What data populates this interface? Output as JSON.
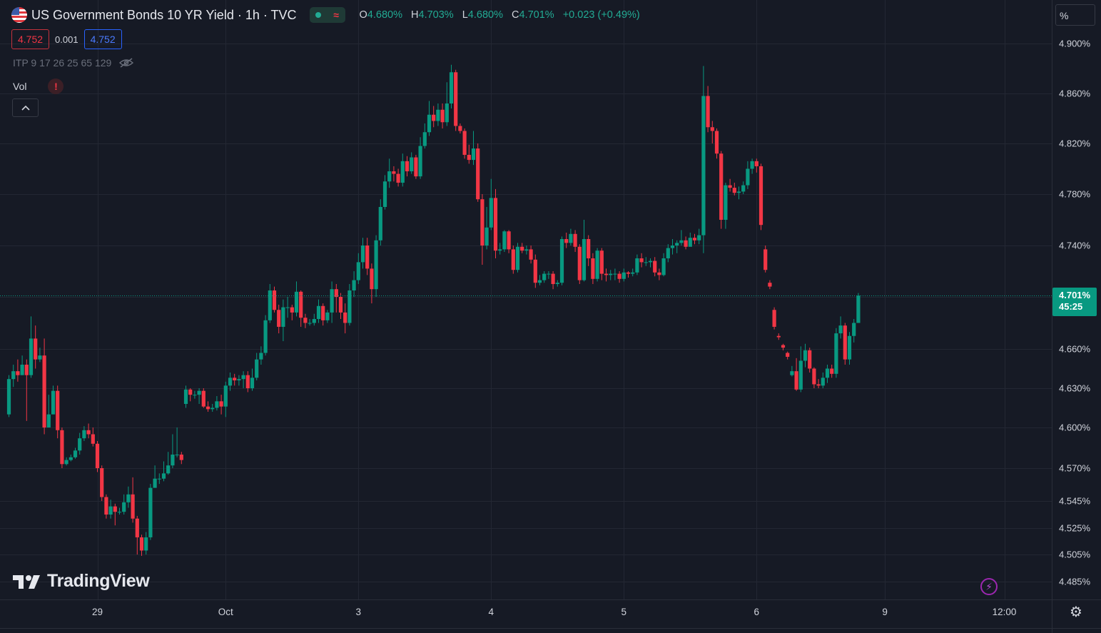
{
  "header": {
    "title": "US Government Bonds 10 YR Yield · 1h · TVC",
    "ohlc": [
      {
        "key": "O",
        "value": "4.680%"
      },
      {
        "key": "H",
        "value": "4.703%"
      },
      {
        "key": "L",
        "value": "4.680%"
      },
      {
        "key": "C",
        "value": "4.701%"
      }
    ],
    "change": "+0.023 (+0.49%)",
    "status_wave": "≈",
    "bid": "4.752",
    "spread": "0.001",
    "ask": "4.752",
    "indicator": "ITP 9 17 26 25 65 129",
    "volume_label": "Vol",
    "alert_glyph": "!",
    "collapse_glyph": "^",
    "unit": "%",
    "brand": "TradingView",
    "bolt_glyph": "⚡",
    "gear_glyph": "⚙",
    "current_price": "4.701%",
    "countdown": "45:25"
  },
  "colors": {
    "up": "#089981",
    "down": "#f23645",
    "background": "#161a25",
    "grid": "#232733"
  },
  "chart_data": {
    "type": "candlestick",
    "title": "US Government Bonds 10 YR Yield · 1h · TVC",
    "y_ticks": [
      4.485,
      4.505,
      4.525,
      4.545,
      4.57,
      4.6,
      4.63,
      4.66,
      4.7,
      4.74,
      4.78,
      4.82,
      4.86,
      4.9
    ],
    "y_tick_labels": [
      "4.485%",
      "4.505%",
      "4.525%",
      "4.545%",
      "4.570%",
      "4.600%",
      "4.630%",
      "4.660%",
      "4.700%",
      "4.740%",
      "4.780%",
      "4.820%",
      "4.860%",
      "4.900%"
    ],
    "x_ticks": [
      "29",
      "Oct",
      "3",
      "4",
      "5",
      "6",
      "9",
      "12:00"
    ],
    "current_price": 4.701,
    "x_unit": "hourly bar index",
    "x_tick_positions": [
      20,
      49,
      79,
      109,
      139,
      169,
      198,
      225
    ],
    "candles": [
      [
        0,
        4.61,
        4.637,
        4.64,
        4.608
      ],
      [
        1,
        4.637,
        4.643,
        4.648,
        4.631
      ],
      [
        2,
        4.643,
        4.64,
        4.652,
        4.635
      ],
      [
        3,
        4.64,
        4.648,
        4.655,
        4.64
      ],
      [
        4,
        4.648,
        4.64,
        4.652,
        4.605
      ],
      [
        5,
        4.64,
        4.668,
        4.685,
        4.638
      ],
      [
        6,
        4.668,
        4.652,
        4.678,
        4.645
      ],
      [
        7,
        4.652,
        4.655,
        4.661,
        4.65
      ],
      [
        8,
        4.655,
        4.6,
        4.668,
        4.595
      ],
      [
        9,
        4.6,
        4.61,
        4.625,
        4.603
      ],
      [
        10,
        4.61,
        4.628,
        4.632,
        4.61
      ],
      [
        11,
        4.628,
        4.598,
        4.632,
        4.592
      ],
      [
        12,
        4.598,
        4.573,
        4.6,
        4.57
      ],
      [
        13,
        4.573,
        4.576,
        4.578,
        4.572
      ],
      [
        14,
        4.576,
        4.578,
        4.58,
        4.575
      ],
      [
        15,
        4.578,
        4.583,
        4.585,
        4.577
      ],
      [
        16,
        4.583,
        4.592,
        4.596,
        4.58
      ],
      [
        17,
        4.592,
        4.598,
        4.601,
        4.59
      ],
      [
        18,
        4.598,
        4.595,
        4.603,
        4.592
      ],
      [
        19,
        4.595,
        4.588,
        4.6,
        4.586
      ],
      [
        20,
        4.588,
        4.57,
        4.59,
        4.567
      ],
      [
        21,
        4.57,
        4.548,
        4.572,
        4.545
      ],
      [
        22,
        4.548,
        4.535,
        4.55,
        4.532
      ],
      [
        23,
        4.535,
        4.541,
        4.546,
        4.532
      ],
      [
        24,
        4.541,
        4.537,
        4.543,
        4.527
      ],
      [
        25,
        4.537,
        4.537,
        4.54,
        4.535
      ],
      [
        26,
        4.537,
        4.544,
        4.55,
        4.535
      ],
      [
        27,
        4.544,
        4.55,
        4.556,
        4.54
      ],
      [
        28,
        4.55,
        4.532,
        4.563,
        4.529
      ],
      [
        29,
        4.532,
        4.518,
        4.534,
        4.505
      ],
      [
        30,
        4.518,
        4.508,
        4.52,
        4.504
      ],
      [
        31,
        4.508,
        4.518,
        4.522,
        4.505
      ],
      [
        32,
        4.518,
        4.555,
        4.558,
        4.516
      ],
      [
        33,
        4.555,
        4.562,
        4.572,
        4.555
      ],
      [
        34,
        4.562,
        4.562,
        4.566,
        4.558
      ],
      [
        35,
        4.562,
        4.566,
        4.575,
        4.56
      ],
      [
        36,
        4.566,
        4.572,
        4.582,
        4.565
      ],
      [
        37,
        4.572,
        4.58,
        4.595,
        4.57
      ],
      [
        38,
        4.58,
        4.58,
        4.6,
        4.578
      ],
      [
        39,
        4.58,
        4.576,
        4.582,
        4.573
      ],
      [
        40,
        4.618,
        4.629,
        4.632,
        4.615
      ],
      [
        41,
        4.629,
        4.625,
        4.63,
        4.62
      ],
      [
        42,
        4.625,
        4.625,
        4.628,
        4.622
      ],
      [
        43,
        4.625,
        4.628,
        4.63,
        4.618
      ],
      [
        44,
        4.628,
        4.616,
        4.63,
        4.615
      ],
      [
        45,
        4.616,
        4.614,
        4.62,
        4.612
      ],
      [
        46,
        4.614,
        4.615,
        4.618,
        4.612
      ],
      [
        47,
        4.615,
        4.62,
        4.624,
        4.613
      ],
      [
        48,
        4.62,
        4.616,
        4.625,
        4.61
      ],
      [
        49,
        4.616,
        4.632,
        4.635,
        4.608
      ],
      [
        50,
        4.632,
        4.638,
        4.642,
        4.628
      ],
      [
        51,
        4.638,
        4.636,
        4.641,
        4.632
      ],
      [
        52,
        4.636,
        4.637,
        4.64,
        4.632
      ],
      [
        53,
        4.637,
        4.64,
        4.643,
        4.63
      ],
      [
        54,
        4.64,
        4.63,
        4.643,
        4.627
      ],
      [
        55,
        4.63,
        4.638,
        4.645,
        4.628
      ],
      [
        56,
        4.638,
        4.652,
        4.657,
        4.636
      ],
      [
        57,
        4.652,
        4.657,
        4.662,
        4.648
      ],
      [
        58,
        4.657,
        4.682,
        4.686,
        4.655
      ],
      [
        59,
        4.682,
        4.705,
        4.71,
        4.68
      ],
      [
        60,
        4.705,
        4.69,
        4.708,
        4.688
      ],
      [
        61,
        4.69,
        4.677,
        4.694,
        4.672
      ],
      [
        62,
        4.677,
        4.692,
        4.698,
        4.666
      ],
      [
        63,
        4.692,
        4.692,
        4.7,
        4.684
      ],
      [
        64,
        4.692,
        4.688,
        4.694,
        4.682
      ],
      [
        65,
        4.688,
        4.704,
        4.712,
        4.685
      ],
      [
        66,
        4.704,
        4.684,
        4.705,
        4.677
      ],
      [
        67,
        4.684,
        4.68,
        4.687,
        4.676
      ],
      [
        68,
        4.68,
        4.68,
        4.683,
        4.678
      ],
      [
        69,
        4.68,
        4.683,
        4.687,
        4.678
      ],
      [
        70,
        4.683,
        4.693,
        4.698,
        4.68
      ],
      [
        71,
        4.693,
        4.682,
        4.695,
        4.678
      ],
      [
        72,
        4.682,
        4.688,
        4.69,
        4.68
      ],
      [
        73,
        4.688,
        4.706,
        4.712,
        4.68
      ],
      [
        74,
        4.706,
        4.7,
        4.71,
        4.688
      ],
      [
        75,
        4.7,
        4.688,
        4.703,
        4.683
      ],
      [
        76,
        4.688,
        4.68,
        4.695,
        4.672
      ],
      [
        77,
        4.68,
        4.705,
        4.71,
        4.678
      ],
      [
        78,
        4.705,
        4.713,
        4.72,
        4.7
      ],
      [
        79,
        4.713,
        4.727,
        4.734,
        4.71
      ],
      [
        80,
        4.727,
        4.74,
        4.746,
        4.722
      ],
      [
        81,
        4.74,
        4.722,
        4.746,
        4.717
      ],
      [
        82,
        4.722,
        4.706,
        4.726,
        4.695
      ],
      [
        83,
        4.706,
        4.744,
        4.748,
        4.7
      ],
      [
        84,
        4.744,
        4.77,
        4.776,
        4.74
      ],
      [
        85,
        4.77,
        4.79,
        4.795,
        4.768
      ],
      [
        86,
        4.79,
        4.798,
        4.808,
        4.785
      ],
      [
        87,
        4.798,
        4.796,
        4.802,
        4.79
      ],
      [
        88,
        4.796,
        4.789,
        4.8,
        4.786
      ],
      [
        89,
        4.789,
        4.806,
        4.812,
        4.786
      ],
      [
        90,
        4.806,
        4.798,
        4.81,
        4.794
      ],
      [
        91,
        4.798,
        4.809,
        4.813,
        4.796
      ],
      [
        92,
        4.809,
        4.794,
        4.811,
        4.792
      ],
      [
        93,
        4.794,
        4.818,
        4.825,
        4.792
      ],
      [
        94,
        4.818,
        4.829,
        4.836,
        4.816
      ],
      [
        95,
        4.829,
        4.843,
        4.854,
        4.826
      ],
      [
        96,
        4.843,
        4.838,
        4.85,
        4.833
      ],
      [
        97,
        4.838,
        4.847,
        4.852,
        4.834
      ],
      [
        98,
        4.847,
        4.837,
        4.852,
        4.832
      ],
      [
        99,
        4.837,
        4.852,
        4.869,
        4.834
      ],
      [
        100,
        4.852,
        4.877,
        4.883,
        4.848
      ],
      [
        101,
        4.877,
        4.834,
        4.879,
        4.83
      ],
      [
        102,
        4.834,
        4.83,
        4.836,
        4.828
      ],
      [
        103,
        4.83,
        4.811,
        4.832,
        4.808
      ],
      [
        104,
        4.811,
        4.807,
        4.819,
        4.804
      ],
      [
        105,
        4.807,
        4.816,
        4.83,
        4.803
      ],
      [
        106,
        4.816,
        4.776,
        4.82,
        4.774
      ],
      [
        107,
        4.776,
        4.74,
        4.78,
        4.725
      ],
      [
        108,
        4.74,
        4.754,
        4.77,
        4.737
      ],
      [
        109,
        4.754,
        4.777,
        4.792,
        4.752
      ],
      [
        110,
        4.777,
        4.736,
        4.784,
        4.73
      ],
      [
        111,
        4.736,
        4.737,
        4.742,
        4.733
      ],
      [
        112,
        4.737,
        4.751,
        4.752,
        4.735
      ],
      [
        113,
        4.751,
        4.737,
        4.752,
        4.734
      ],
      [
        114,
        4.737,
        4.721,
        4.74,
        4.718
      ],
      [
        115,
        4.721,
        4.739,
        4.742,
        4.719
      ],
      [
        116,
        4.739,
        4.736,
        4.742,
        4.734
      ],
      [
        117,
        4.736,
        4.737,
        4.74,
        4.733
      ],
      [
        118,
        4.737,
        4.729,
        4.74,
        4.726
      ],
      [
        119,
        4.729,
        4.711,
        4.733,
        4.707
      ],
      [
        120,
        4.711,
        4.713,
        4.717,
        4.709
      ],
      [
        121,
        4.713,
        4.718,
        4.72,
        4.711
      ],
      [
        122,
        4.718,
        4.718,
        4.72,
        4.714
      ],
      [
        123,
        4.718,
        4.71,
        4.72,
        4.706
      ],
      [
        124,
        4.71,
        4.711,
        4.713,
        4.708
      ],
      [
        125,
        4.711,
        4.745,
        4.747,
        4.709
      ],
      [
        126,
        4.745,
        4.742,
        4.75,
        4.738
      ],
      [
        127,
        4.742,
        4.749,
        4.753,
        4.74
      ],
      [
        128,
        4.749,
        4.739,
        4.752,
        4.735
      ],
      [
        129,
        4.739,
        4.713,
        4.741,
        4.71
      ],
      [
        130,
        4.713,
        4.745,
        4.76,
        4.712
      ],
      [
        131,
        4.745,
        4.73,
        4.748,
        4.724
      ],
      [
        132,
        4.73,
        4.714,
        4.734,
        4.71
      ],
      [
        133,
        4.714,
        4.736,
        4.738,
        4.712
      ],
      [
        134,
        4.736,
        4.718,
        4.738,
        4.713
      ],
      [
        135,
        4.718,
        4.717,
        4.722,
        4.712
      ],
      [
        136,
        4.717,
        4.718,
        4.721,
        4.713
      ],
      [
        137,
        4.718,
        4.718,
        4.722,
        4.713
      ],
      [
        138,
        4.718,
        4.714,
        4.72,
        4.711
      ],
      [
        139,
        4.714,
        4.719,
        4.722,
        4.712
      ],
      [
        140,
        4.719,
        4.718,
        4.72,
        4.715
      ],
      [
        141,
        4.718,
        4.719,
        4.722,
        4.716
      ],
      [
        142,
        4.719,
        4.73,
        4.733,
        4.717
      ],
      [
        143,
        4.73,
        4.727,
        4.734,
        4.723
      ],
      [
        144,
        4.727,
        4.727,
        4.731,
        4.724
      ],
      [
        145,
        4.727,
        4.728,
        4.73,
        4.723
      ],
      [
        146,
        4.728,
        4.719,
        4.731,
        4.716
      ],
      [
        147,
        4.719,
        4.717,
        4.722,
        4.713
      ],
      [
        148,
        4.717,
        4.73,
        4.734,
        4.716
      ],
      [
        149,
        4.73,
        4.738,
        4.741,
        4.727
      ],
      [
        150,
        4.738,
        4.74,
        4.745,
        4.733
      ],
      [
        151,
        4.74,
        4.742,
        4.744,
        4.734
      ],
      [
        152,
        4.742,
        4.744,
        4.752,
        4.74
      ],
      [
        153,
        4.744,
        4.739,
        4.747,
        4.737
      ],
      [
        154,
        4.739,
        4.746,
        4.75,
        4.744
      ],
      [
        155,
        4.746,
        4.744,
        4.749,
        4.741
      ],
      [
        156,
        4.744,
        4.748,
        4.753,
        4.741
      ],
      [
        157,
        4.748,
        4.858,
        4.882,
        4.734
      ],
      [
        158,
        4.858,
        4.833,
        4.866,
        4.829
      ],
      [
        159,
        4.833,
        4.83,
        4.838,
        4.82
      ],
      [
        160,
        4.83,
        4.812,
        4.832,
        4.808
      ],
      [
        161,
        4.812,
        4.76,
        4.814,
        4.753
      ],
      [
        162,
        4.76,
        4.787,
        4.789,
        4.753
      ],
      [
        163,
        4.787,
        4.785,
        4.792,
        4.782
      ],
      [
        164,
        4.785,
        4.781,
        4.789,
        4.779
      ],
      [
        165,
        4.781,
        4.782,
        4.786,
        4.776
      ],
      [
        166,
        4.782,
        4.787,
        4.79,
        4.78
      ],
      [
        167,
        4.787,
        4.8,
        4.806,
        4.784
      ],
      [
        168,
        4.8,
        4.806,
        4.808,
        4.796
      ],
      [
        169,
        4.806,
        4.802,
        4.808,
        4.797
      ],
      [
        170,
        4.802,
        4.756,
        4.804,
        4.752
      ],
      [
        171,
        4.737,
        4.721,
        4.74,
        4.719
      ],
      [
        172,
        4.711,
        4.708,
        4.713,
        4.706
      ],
      [
        173,
        4.69,
        4.677,
        4.692,
        4.675
      ],
      [
        174,
        4.67,
        4.669,
        4.672,
        4.667
      ],
      [
        175,
        4.663,
        4.661,
        4.664,
        4.659
      ],
      [
        176,
        4.657,
        4.654,
        4.658,
        4.652
      ],
      [
        177,
        4.64,
        4.643,
        4.647,
        4.639
      ],
      [
        178,
        4.643,
        4.629,
        4.653,
        4.628
      ],
      [
        179,
        4.629,
        4.651,
        4.662,
        4.627
      ],
      [
        180,
        4.651,
        4.659,
        4.664,
        4.646
      ],
      [
        181,
        4.659,
        4.645,
        4.661,
        4.642
      ],
      [
        182,
        4.645,
        4.633,
        4.646,
        4.63
      ],
      [
        183,
        4.633,
        4.632,
        4.637,
        4.63
      ],
      [
        184,
        4.632,
        4.638,
        4.642,
        4.63
      ],
      [
        185,
        4.638,
        4.645,
        4.648,
        4.634
      ],
      [
        186,
        4.645,
        4.641,
        4.648,
        4.638
      ],
      [
        187,
        4.641,
        4.672,
        4.676,
        4.638
      ],
      [
        188,
        4.672,
        4.678,
        4.685,
        4.668
      ],
      [
        189,
        4.678,
        4.652,
        4.68,
        4.648
      ],
      [
        190,
        4.652,
        4.67,
        4.673,
        4.648
      ],
      [
        191,
        4.67,
        4.68,
        4.683,
        4.665
      ],
      [
        192,
        4.68,
        4.701,
        4.703,
        4.68
      ]
    ]
  }
}
